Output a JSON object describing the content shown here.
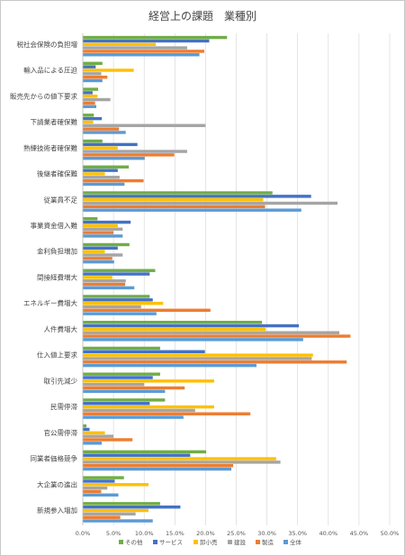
{
  "chart_data": {
    "type": "bar",
    "orientation": "horizontal",
    "title": "経営上の課題　業種別",
    "categories": [
      "税社会保険の負担増",
      "輸入品による圧迫",
      "販売先からの値下要求",
      "下請業者確保難",
      "熟練技術者確保難",
      "後継者確保難",
      "従業員不足",
      "事業資金借入難",
      "金利負担増加",
      "間接経費増大",
      "エネルギー費増大",
      "人件費増大",
      "仕入値上要求",
      "取引先減少",
      "民需停滞",
      "官公需停滞",
      "同業者価格競争",
      "大企業の進出",
      "新規参入増加"
    ],
    "xlim": [
      0,
      50
    ],
    "xticks": [
      "0.0%",
      "5.0%",
      "10.0%",
      "15.0%",
      "20.0%",
      "25.0%",
      "30.0%",
      "35.0%",
      "40.0%",
      "45.0%",
      "50.0%"
    ],
    "grid": true,
    "legend_position": "bottom",
    "series": [
      {
        "name": "その他",
        "color": "#70ad47",
        "values": [
          23.5,
          3.2,
          2.5,
          1.8,
          3.2,
          7.5,
          30.9,
          2.4,
          7.6,
          11.8,
          10.9,
          29.2,
          12.6,
          12.6,
          13.4,
          0.6,
          20.1,
          6.7,
          12.6
        ]
      },
      {
        "name": "サービス",
        "color": "#4472c4",
        "values": [
          20.6,
          2.1,
          1.6,
          3.1,
          8.9,
          5.7,
          37.2,
          7.8,
          5.7,
          10.9,
          11.4,
          35.2,
          19.9,
          11.4,
          10.9,
          1.1,
          17.5,
          5.2,
          15.9
        ]
      },
      {
        "name": "卸小売",
        "color": "#ffc000",
        "values": [
          11.9,
          8.3,
          2.4,
          1.7,
          5.7,
          3.6,
          29.4,
          5.7,
          3.6,
          4.8,
          13.1,
          29.8,
          37.5,
          21.4,
          21.4,
          3.6,
          31.5,
          10.7,
          10.7
        ]
      },
      {
        "name": "建設",
        "color": "#a5a5a5",
        "values": [
          17.0,
          3.0,
          4.5,
          20.0,
          17.0,
          6.0,
          41.5,
          6.5,
          6.5,
          7.0,
          9.5,
          41.8,
          37.3,
          10.0,
          18.3,
          5.0,
          32.2,
          4.0,
          8.6
        ]
      },
      {
        "name": "製造",
        "color": "#ed7d31",
        "values": [
          19.8,
          4.0,
          2.0,
          5.9,
          14.9,
          9.9,
          29.7,
          5.0,
          4.8,
          6.9,
          20.8,
          43.6,
          43.0,
          16.6,
          27.3,
          8.1,
          24.5,
          3.0,
          6.1
        ]
      },
      {
        "name": "全体",
        "color": "#5b9bd5",
        "values": [
          19.0,
          3.2,
          2.2,
          7.0,
          10.1,
          6.8,
          35.6,
          6.5,
          5.1,
          8.4,
          12.0,
          35.9,
          28.3,
          13.4,
          16.4,
          3.1,
          24.2,
          5.8,
          11.4
        ]
      }
    ]
  }
}
